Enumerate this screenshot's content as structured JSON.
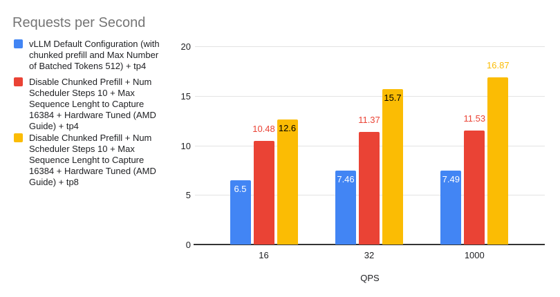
{
  "colors": {
    "background": "#ffffff",
    "title_text": "#757575",
    "axis_text": "#202124",
    "legend_text": "#202124",
    "gridline": "#e3e3e3",
    "axis_baseline": "#333333",
    "series_blue": "#4285F4",
    "series_red": "#EA4335",
    "series_yellow": "#FBBC04"
  },
  "chart_data": {
    "type": "bar",
    "title": "Requests per Second",
    "xlabel": "QPS",
    "ylabel": "",
    "categories": [
      "16",
      "32",
      "1000"
    ],
    "ylim": [
      0,
      20
    ],
    "y_ticks": [
      0,
      5,
      10,
      15,
      20
    ],
    "grid": true,
    "legend_position": "left",
    "series": [
      {
        "name": "vLLM Default Configuration (with chunked prefill and Max Number of Batched Tokens 512) + tp4",
        "color": "#4285F4",
        "values": [
          6.5,
          7.46,
          7.49
        ],
        "data_labels": [
          {
            "text": "6.5",
            "placement": "inside",
            "color": "#ffffff"
          },
          {
            "text": "7.46",
            "placement": "inside",
            "color": "#ffffff"
          },
          {
            "text": "7.49",
            "placement": "inside",
            "color": "#ffffff"
          }
        ],
        "legend_lines": [
          "vLLM Default Configuration (with",
          "chunked prefill and Max Number",
          "of Batched Tokens 512) + tp4"
        ]
      },
      {
        "name": "Disable Chunked Prefill + Num Scheduler Steps 10 + Max Sequence Lenght to Capture 16384 + Hardware Tuned (AMD Guide) + tp4",
        "color": "#EA4335",
        "values": [
          10.48,
          11.37,
          11.53
        ],
        "data_labels": [
          {
            "text": "10.48",
            "placement": "above",
            "color": "#EA4335"
          },
          {
            "text": "11.37",
            "placement": "above",
            "color": "#EA4335"
          },
          {
            "text": "11.53",
            "placement": "above",
            "color": "#EA4335"
          }
        ],
        "legend_lines": [
          "Disable Chunked Prefill + Num",
          "Scheduler Steps 10 + Max",
          "Sequence Lenght to Capture",
          "16384 + Hardware Tuned (AMD",
          "Guide) + tp4"
        ]
      },
      {
        "name": "Disable Chunked Prefill + Num Scheduler Steps 10 + Max Sequence Lenght to Capture 16384 + Hardware Tuned (AMD Guide) + tp8",
        "color": "#FBBC04",
        "values": [
          12.6,
          15.7,
          16.87
        ],
        "data_labels": [
          {
            "text": "12.6",
            "placement": "inside",
            "color": "#000000"
          },
          {
            "text": "15.7",
            "placement": "inside",
            "color": "#000000"
          },
          {
            "text": "16.87",
            "placement": "above",
            "color": "#FBBC04"
          }
        ],
        "legend_lines": [
          "Disable Chunked Prefill + Num",
          "Scheduler Steps 10 + Max",
          "Sequence Lenght to Capture",
          "16384 + Hardware Tuned (AMD",
          "Guide) + tp8"
        ]
      }
    ]
  }
}
